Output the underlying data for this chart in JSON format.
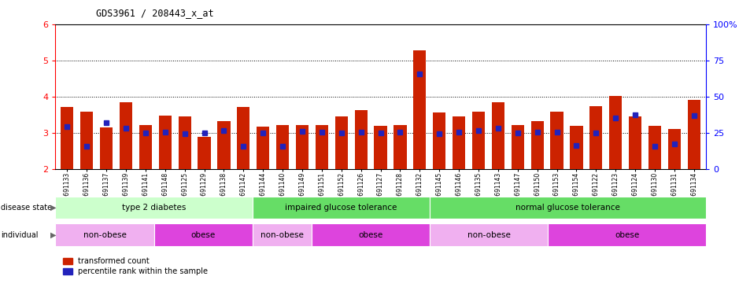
{
  "title": "GDS3961 / 208443_x_at",
  "samples": [
    "GSM691133",
    "GSM691136",
    "GSM691137",
    "GSM691139",
    "GSM691141",
    "GSM691148",
    "GSM691125",
    "GSM691129",
    "GSM691138",
    "GSM691142",
    "GSM691144",
    "GSM691140",
    "GSM691149",
    "GSM691151",
    "GSM691152",
    "GSM691126",
    "GSM691127",
    "GSM691128",
    "GSM691132",
    "GSM691145",
    "GSM691146",
    "GSM691135",
    "GSM691143",
    "GSM691147",
    "GSM691150",
    "GSM691153",
    "GSM691154",
    "GSM691122",
    "GSM691123",
    "GSM691124",
    "GSM691130",
    "GSM691131",
    "GSM691134"
  ],
  "bar_heights": [
    3.72,
    3.58,
    3.16,
    3.85,
    3.22,
    3.47,
    3.46,
    2.88,
    3.32,
    3.72,
    3.17,
    3.22,
    3.22,
    3.22,
    3.45,
    3.62,
    3.19,
    3.22,
    5.28,
    3.57,
    3.46,
    3.58,
    3.85,
    3.22,
    3.33,
    3.58,
    3.19,
    3.74,
    4.02,
    3.45,
    3.2,
    3.1,
    3.92
  ],
  "blue_dot_heights": [
    3.18,
    2.62,
    3.28,
    3.12,
    3.0,
    3.02,
    2.98,
    3.0,
    3.06,
    2.62,
    3.0,
    2.62,
    3.04,
    3.02,
    3.0,
    3.02,
    3.0,
    3.02,
    4.62,
    2.98,
    3.02,
    3.06,
    3.12,
    3.0,
    3.02,
    3.02,
    2.66,
    3.0,
    3.42,
    3.5,
    2.62,
    2.7,
    3.48
  ],
  "ymin": 2.0,
  "ymax": 6.0,
  "yticks": [
    2,
    3,
    4,
    5,
    6
  ],
  "right_yticks": [
    0,
    25,
    50,
    75,
    100
  ],
  "bar_color": "#cc2200",
  "dot_color": "#2222bb",
  "bg_color": "#ffffff",
  "ds_groups": [
    {
      "label": "type 2 diabetes",
      "start": 0,
      "end": 10,
      "color": "#ccffcc"
    },
    {
      "label": "impaired glucose tolerance",
      "start": 10,
      "end": 19,
      "color": "#66dd66"
    },
    {
      "label": "normal glucose tolerance",
      "start": 19,
      "end": 33,
      "color": "#66dd66"
    }
  ],
  "ind_groups": [
    {
      "label": "non-obese",
      "start": 0,
      "end": 5,
      "color": "#f0b0f0"
    },
    {
      "label": "obese",
      "start": 5,
      "end": 10,
      "color": "#dd44dd"
    },
    {
      "label": "non-obese",
      "start": 10,
      "end": 13,
      "color": "#f0b0f0"
    },
    {
      "label": "obese",
      "start": 13,
      "end": 19,
      "color": "#dd44dd"
    },
    {
      "label": "non-obese",
      "start": 19,
      "end": 25,
      "color": "#f0b0f0"
    },
    {
      "label": "obese",
      "start": 25,
      "end": 33,
      "color": "#dd44dd"
    }
  ]
}
